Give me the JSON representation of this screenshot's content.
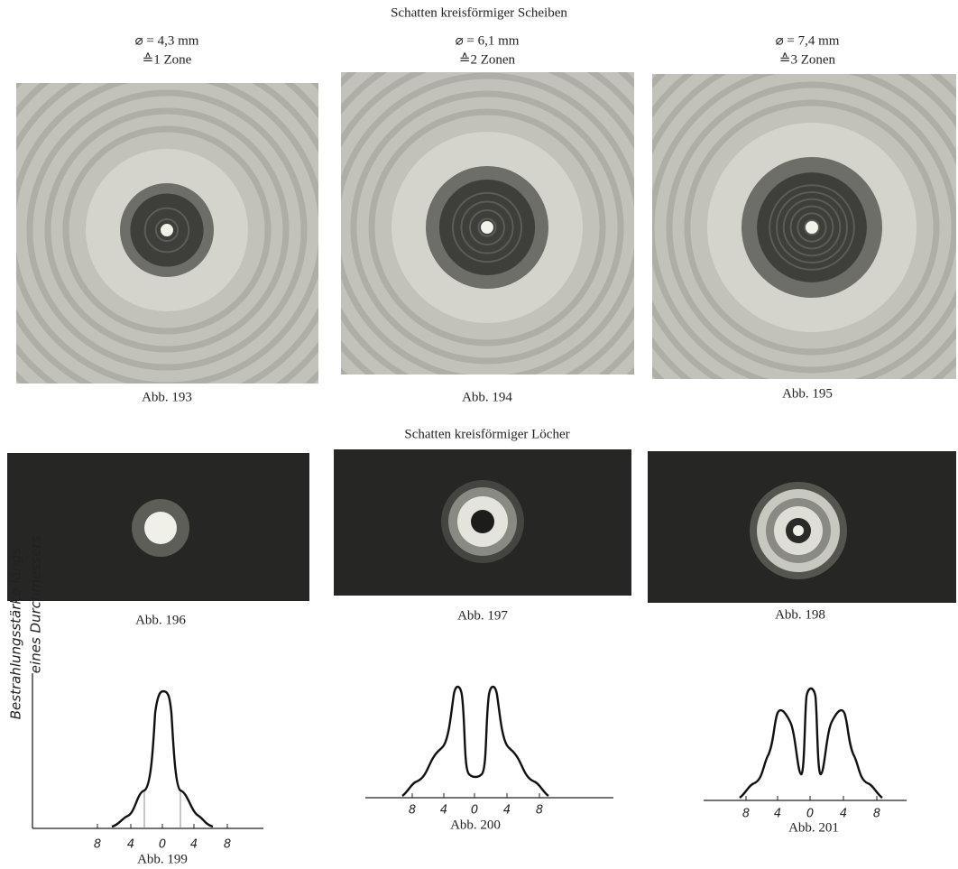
{
  "discs": {
    "title": "Schatten kreisförmiger Scheiben",
    "figures": [
      {
        "diameter": "⌀ = 4,3 mm",
        "zones": "≙1 Zone",
        "caption": "Abb. 193"
      },
      {
        "diameter": "⌀ = 6,1 mm",
        "zones": "≙2 Zonen",
        "caption": "Abb. 194"
      },
      {
        "diameter": "⌀ = 7,4 mm",
        "zones": "≙3 Zonen",
        "caption": "Abb. 195"
      }
    ]
  },
  "holes": {
    "title": "Schatten kreisförmiger Löcher",
    "figures": [
      {
        "caption": "Abb. 196"
      },
      {
        "caption": "Abb. 197"
      },
      {
        "caption": "Abb. 198"
      }
    ]
  },
  "profiles": {
    "axis_label": [
      "Bestrahlungsstärke längs",
      "eines Durchmessers"
    ],
    "figures": [
      {
        "ticks": [
          "8",
          "4",
          "0",
          "4",
          "8"
        ],
        "caption": "Abb. 199"
      },
      {
        "ticks": [
          "8",
          "4",
          "0",
          "4",
          "8"
        ],
        "caption": "Abb. 200"
      },
      {
        "ticks": [
          "8",
          "4",
          "0",
          "4",
          "8"
        ],
        "caption": "Abb. 201"
      }
    ]
  }
}
